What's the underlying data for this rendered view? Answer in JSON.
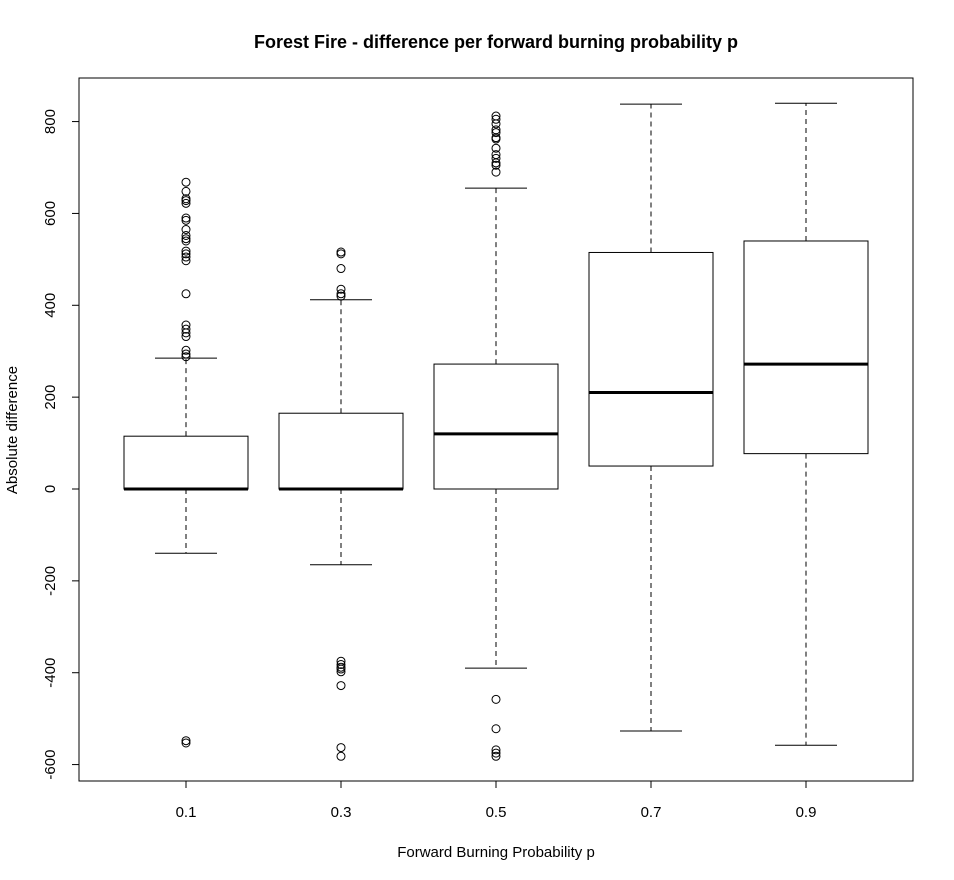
{
  "chart_data": {
    "type": "boxplot",
    "title": "Forest Fire - difference per forward burning probability p",
    "xlabel": "Forward Burning Probability p",
    "ylabel": "Absolute difference",
    "categories": [
      "0.1",
      "0.3",
      "0.5",
      "0.7",
      "0.9"
    ],
    "ylim": [
      -640,
      895
    ],
    "yticks": [
      -600,
      -400,
      -200,
      0,
      200,
      400,
      600,
      800
    ],
    "grid": false,
    "boxes": [
      {
        "category": "0.1",
        "whisker_low": -140,
        "q1": 0,
        "median": 0,
        "q3": 115,
        "whisker_high": 285,
        "outliers": [
          668,
          648,
          632,
          628,
          622,
          590,
          585,
          565,
          552,
          545,
          540,
          518,
          512,
          505,
          497,
          425,
          357,
          348,
          340,
          332,
          302,
          294,
          288,
          -548,
          -553
        ]
      },
      {
        "category": "0.3",
        "whisker_low": -165,
        "q1": 0,
        "median": 0,
        "q3": 165,
        "whisker_high": 412,
        "outliers": [
          516,
          512,
          480,
          435,
          425,
          420,
          -375,
          -382,
          -388,
          -392,
          -398,
          -428,
          -563,
          -582
        ]
      },
      {
        "category": "0.5",
        "whisker_low": -390,
        "q1": 0,
        "median": 120,
        "q3": 272,
        "whisker_high": 655,
        "outliers": [
          812,
          805,
          795,
          782,
          776,
          765,
          762,
          742,
          728,
          720,
          710,
          705,
          690,
          -458,
          -522,
          -568,
          -575,
          -582
        ]
      },
      {
        "category": "0.7",
        "whisker_low": -527,
        "q1": 50,
        "median": 210,
        "q3": 515,
        "whisker_high": 838,
        "outliers": []
      },
      {
        "category": "0.9",
        "whisker_low": -558,
        "q1": 77,
        "median": 272,
        "q3": 540,
        "whisker_high": 840,
        "outliers": []
      }
    ]
  }
}
